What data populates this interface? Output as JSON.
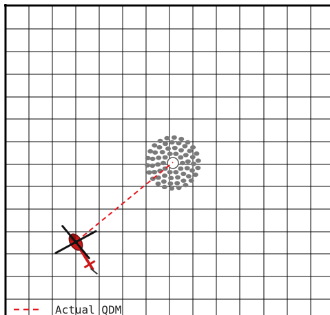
{
  "legend": {
    "label": "Actual QDM",
    "line_style": "dashed",
    "line_color": "#e8141b"
  },
  "colors": {
    "background": "#ffffff",
    "grid": "#000000",
    "qdm_line": "#e8141b",
    "beacon_dots": "#7a7a7a",
    "beacon_center_fill": "#ffffff",
    "helicopter_body": "#cc1717",
    "helicopter_rotor": "#111111",
    "helicopter_tail": "#cc1717"
  },
  "icons": {
    "beacon": "beacon-dot-ring-icon",
    "aircraft": "helicopter-icon"
  }
}
